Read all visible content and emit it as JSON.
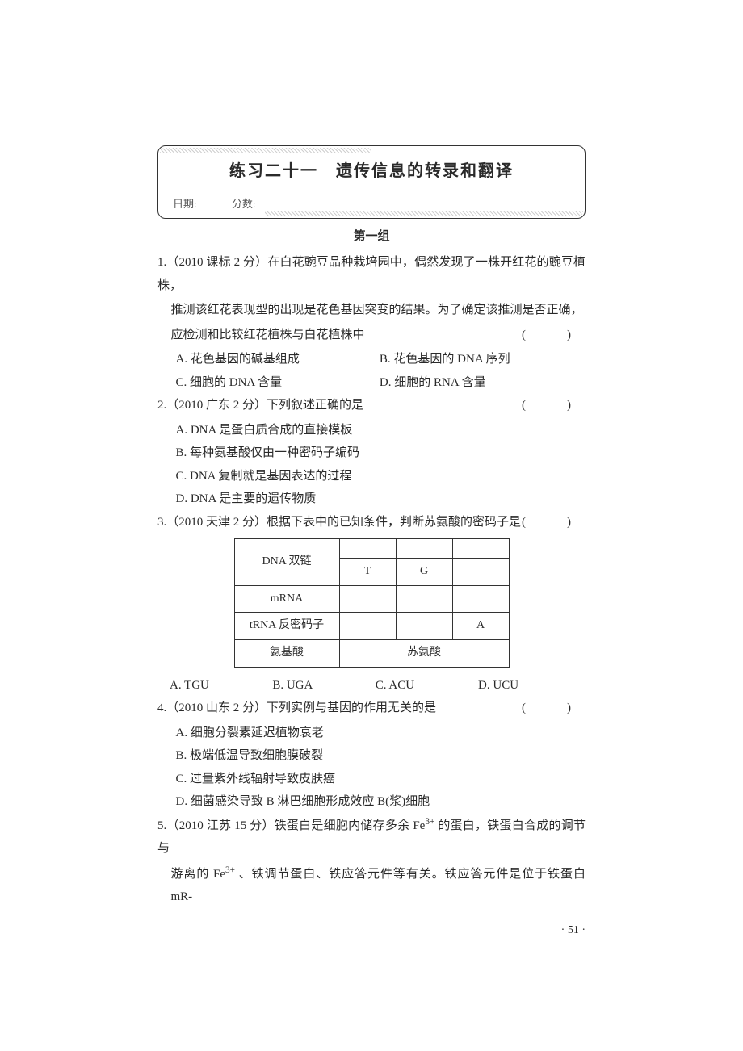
{
  "title": {
    "main": "练习二十一　遗传信息的转录和翻译",
    "date_label": "日期:",
    "score_label": "分数:"
  },
  "group_head": "第一组",
  "q1": {
    "stem_l1": "1.（2010 课标 2 分）在白花豌豆品种栽培园中，偶然发现了一株开红花的豌豆植株，",
    "stem_l2": "推测该红花表现型的出现是花色基因突变的结果。为了确定该推测是否正确，",
    "stem_l3": "应检测和比较红花植株与白花植株中",
    "optA": "A. 花色基因的碱基组成",
    "optB": "B. 花色基因的 DNA 序列",
    "optC": "C. 细胞的 DNA 含量",
    "optD": "D. 细胞的 RNA 含量"
  },
  "q2": {
    "stem": "2.（2010 广东 2 分）下列叙述正确的是",
    "optA": "A. DNA 是蛋白质合成的直接模板",
    "optB": "B. 每种氨基酸仅由一种密码子编码",
    "optC": "C. DNA 复制就是基因表达的过程",
    "optD": "D. DNA 是主要的遗传物质"
  },
  "q3": {
    "stem": "3.（2010 天津 2 分）根据下表中的已知条件，判断苏氨酸的密码子是",
    "table": {
      "r1c1": "DNA 双链",
      "r1c2": "",
      "r1c3": "",
      "r1c4": "",
      "r1bc2": "T",
      "r1bc3": "G",
      "r1bc4": "",
      "r2c1": "mRNA",
      "r2c2": "",
      "r2c3": "",
      "r2c4": "",
      "r3c1": "tRNA 反密码子",
      "r3c2": "",
      "r3c3": "",
      "r3c4": "A",
      "r4c1": "氨基酸",
      "r4c234": "苏氨酸"
    },
    "optA": "A. TGU",
    "optB": "B. UGA",
    "optC": "C. ACU",
    "optD": "D. UCU"
  },
  "q4": {
    "stem": "4.（2010 山东 2 分）下列实例与基因的作用无关的是",
    "optA": "A. 细胞分裂素延迟植物衰老",
    "optB": "B. 极端低温导致细胞膜破裂",
    "optC": "C. 过量紫外线辐射导致皮肤癌",
    "optD": "D. 细菌感染导致 B 淋巴细胞形成效应 B(浆)细胞"
  },
  "q5": {
    "l1_html": "5.（2010 江苏 15 分）铁蛋白是细胞内储存多余 Fe<sup>3+</sup> 的蛋白，铁蛋白合成的调节与",
    "l2_html": "游离的 Fe<sup>3+</sup> 、铁调节蛋白、铁应答元件等有关。铁应答元件是位于铁蛋白 mR-"
  },
  "page_num": "· 51 ·",
  "paren": "(　)"
}
